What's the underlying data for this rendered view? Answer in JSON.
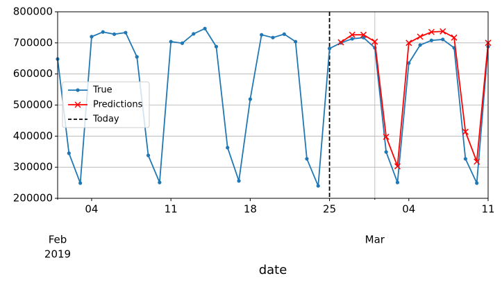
{
  "chart_data": {
    "type": "line",
    "x": [
      "2019-02-01",
      "2019-02-02",
      "2019-02-03",
      "2019-02-04",
      "2019-02-05",
      "2019-02-06",
      "2019-02-07",
      "2019-02-08",
      "2019-02-09",
      "2019-02-10",
      "2019-02-11",
      "2019-02-12",
      "2019-02-13",
      "2019-02-14",
      "2019-02-15",
      "2019-02-16",
      "2019-02-17",
      "2019-02-18",
      "2019-02-19",
      "2019-02-20",
      "2019-02-21",
      "2019-02-22",
      "2019-02-23",
      "2019-02-24",
      "2019-02-25",
      "2019-02-26",
      "2019-02-27",
      "2019-02-28",
      "2019-03-01",
      "2019-03-02",
      "2019-03-03",
      "2019-03-04",
      "2019-03-05",
      "2019-03-06",
      "2019-03-07",
      "2019-03-08",
      "2019-03-09",
      "2019-03-10",
      "2019-03-11"
    ],
    "series": [
      {
        "name": "True",
        "color": "#1f77b4",
        "marker": "o",
        "values": [
          648000,
          345000,
          249000,
          720000,
          735000,
          728000,
          733000,
          655000,
          338000,
          251000,
          704000,
          699000,
          729000,
          746000,
          688000,
          363000,
          256000,
          519000,
          726000,
          717000,
          728000,
          704000,
          327000,
          240000,
          682000,
          700000,
          713000,
          717000,
          684000,
          349000,
          251000,
          635000,
          693000,
          708000,
          711000,
          684000,
          327000,
          249000,
          688000
        ]
      },
      {
        "name": "Predictions",
        "color": "#ff0000",
        "marker": "x",
        "values": [
          null,
          null,
          null,
          null,
          null,
          null,
          null,
          null,
          null,
          null,
          null,
          null,
          null,
          null,
          null,
          null,
          null,
          null,
          null,
          null,
          null,
          null,
          null,
          null,
          null,
          702000,
          726000,
          726000,
          704000,
          398000,
          303000,
          700000,
          720000,
          735000,
          737000,
          717000,
          414000,
          318000,
          700000
        ]
      }
    ],
    "vline": {
      "x": "2019-02-25",
      "label": "Today",
      "color": "#000000",
      "linestyle": "dashed"
    },
    "xlabel": "date",
    "xlim": [
      "2019-02-01",
      "2019-03-11"
    ],
    "xticks": [
      {
        "value": "2019-02-04",
        "label": "04"
      },
      {
        "value": "2019-02-11",
        "label": "11"
      },
      {
        "value": "2019-02-18",
        "label": "18"
      },
      {
        "value": "2019-02-25",
        "label": "25"
      },
      {
        "value": "2019-03-04",
        "label": "04"
      },
      {
        "value": "2019-03-11",
        "label": "11"
      }
    ],
    "xticks_minor": [
      {
        "value": "2019-02-01",
        "label": [
          "Feb",
          "2019"
        ]
      },
      {
        "value": "2019-03-01",
        "label": [
          "Mar"
        ]
      }
    ],
    "ylim": [
      200000,
      800000
    ],
    "yticks": [
      200000,
      300000,
      400000,
      500000,
      600000,
      700000,
      800000
    ],
    "grid": {
      "y": true,
      "x": "minor"
    },
    "legend": "center left"
  }
}
